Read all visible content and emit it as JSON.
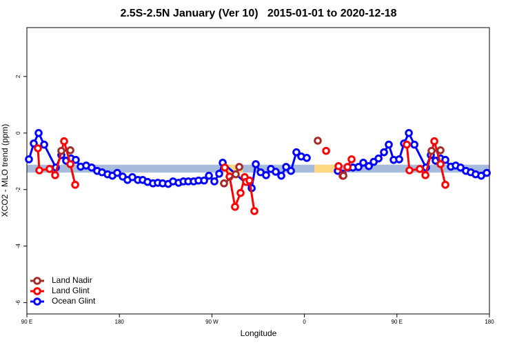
{
  "chart_data": {
    "type": "line",
    "title": "2.5S-2.5N January (Ver 10)   2015-01-01 to 2020-12-18",
    "xlabel": "Longitude",
    "ylabel": "XCO2 - MLO trend (ppm)",
    "xlim": [
      90,
      540
    ],
    "xticks": [
      {
        "value": 90,
        "label": "90 E"
      },
      180,
      {
        "value": 270,
        "label": "90 W"
      },
      {
        "value": 360,
        "label": "0"
      },
      {
        "value": 450,
        "label": "90 E"
      },
      {
        "value": 540,
        "label": "180"
      }
    ],
    "ylim": [
      -6.4,
      3.73
    ],
    "yticks": [
      -6,
      -4,
      -2,
      0,
      2
    ],
    "legend": "bottom-left",
    "band": {
      "ylim": [
        -1.4,
        -1.12
      ],
      "color": "#a7bcdc",
      "highlights": [
        [
          281.8,
          299.9
        ],
        [
          369.7,
          391.1
        ]
      ],
      "highlight_color": "#fdd882"
    },
    "series": [
      {
        "name": "Land Nadir",
        "color": "#a52a2a",
        "x": [
          123.5,
          132.3,
          null,
          281.8,
          293.2,
          296.6,
          null,
          373.0,
          null,
          397.9,
          null,
          483.7,
          492.4
        ],
        "values": [
          -0.63,
          -0.61,
          null,
          -1.78,
          -1.46,
          -1.2,
          null,
          -0.27,
          null,
          -1.51,
          null,
          -0.63,
          -0.61
        ]
      },
      {
        "name": "Land Glint",
        "color": "#ff0000",
        "x": [
          100.7,
          102.1,
          112.1,
          117.5,
          126.2,
          132.3,
          137.0,
          null,
          282.5,
          287.2,
          292.5,
          297.9,
          301.9,
          303.3,
          306.6,
          311.3,
          null,
          381.1,
          null,
          393.2,
          397.2,
          401.9,
          405.9,
          null,
          459.6,
          462.2,
          472.3,
          477.7,
          486.4,
          492.4,
          497.1
        ],
        "values": [
          -0.54,
          -1.32,
          -1.27,
          -1.49,
          -0.29,
          -1.1,
          -1.83,
          null,
          -1.22,
          -1.54,
          -2.61,
          -2.12,
          -1.56,
          -1.73,
          -1.68,
          -2.76,
          null,
          -0.63,
          null,
          -1.17,
          -1.51,
          -1.2,
          -0.93,
          null,
          -0.41,
          -1.32,
          -1.27,
          -1.49,
          -0.29,
          -1.1,
          -1.83
        ]
      },
      {
        "name": "Ocean Glint",
        "color": "#0000ff",
        "x": [
          92.0,
          96.7,
          101.4,
          106.8,
          118.2,
          123.5,
          128.2,
          132.9,
          137.6,
          142.3,
          147.7,
          153.0,
          158.4,
          163.1,
          168.5,
          173.2,
          177.9,
          183.2,
          187.9,
          192.6,
          198.0,
          202.7,
          207.4,
          212.7,
          217.4,
          222.1,
          227.5,
          232.2,
          237.6,
          242.3,
          247.0,
          252.3,
          257.0,
          262.4,
          267.1,
          272.4,
          277.1,
          280.5,
          308.7,
          312.7,
          317.4,
          322.7,
          327.4,
          332.1,
          337.5,
          342.2,
          346.9,
          352.2,
          356.9,
          362.3,
          null,
          392.5,
          397.2,
          402.5,
          407.2,
          412.6,
          417.3,
          422.7,
          427.4,
          432.1,
          437.4,
          442.1,
          446.8,
          452.2,
          456.9,
          461.6,
          467.0,
          478.3,
          483.0,
          487.7,
          492.4,
          497.1,
          502.5,
          507.2,
          511.9,
          517.2,
          521.9,
          526.6,
          532.0,
          537.4
        ],
        "values": [
          -0.93,
          -0.37,
          0,
          -0.41,
          -1.22,
          -0.78,
          -0.98,
          -0.9,
          -0.95,
          -1.19,
          -1.15,
          -1.22,
          -1.34,
          -1.39,
          -1.46,
          -1.51,
          -1.41,
          -1.54,
          -1.66,
          -1.56,
          -1.66,
          -1.66,
          -1.73,
          -1.78,
          -1.76,
          -1.78,
          -1.8,
          -1.71,
          -1.76,
          -1.71,
          -1.71,
          -1.71,
          -1.68,
          -1.68,
          -1.51,
          -1.71,
          -1.44,
          -1.05,
          -1.95,
          -1.1,
          -1.39,
          -1.49,
          -1.27,
          -1.37,
          -1.51,
          -1.2,
          -1.34,
          -0.68,
          -0.83,
          -0.88,
          null,
          -1.34,
          -1.44,
          -1.22,
          -1.22,
          -1.2,
          -1.05,
          -1.17,
          -1.02,
          -0.9,
          -0.68,
          -0.41,
          -0.95,
          -0.93,
          -0.37,
          0,
          -0.41,
          -1.22,
          -0.78,
          -0.98,
          -0.9,
          -0.95,
          -1.19,
          -1.15,
          -1.22,
          -1.34,
          -1.39,
          -1.46,
          -1.51,
          -1.41
        ]
      }
    ]
  }
}
